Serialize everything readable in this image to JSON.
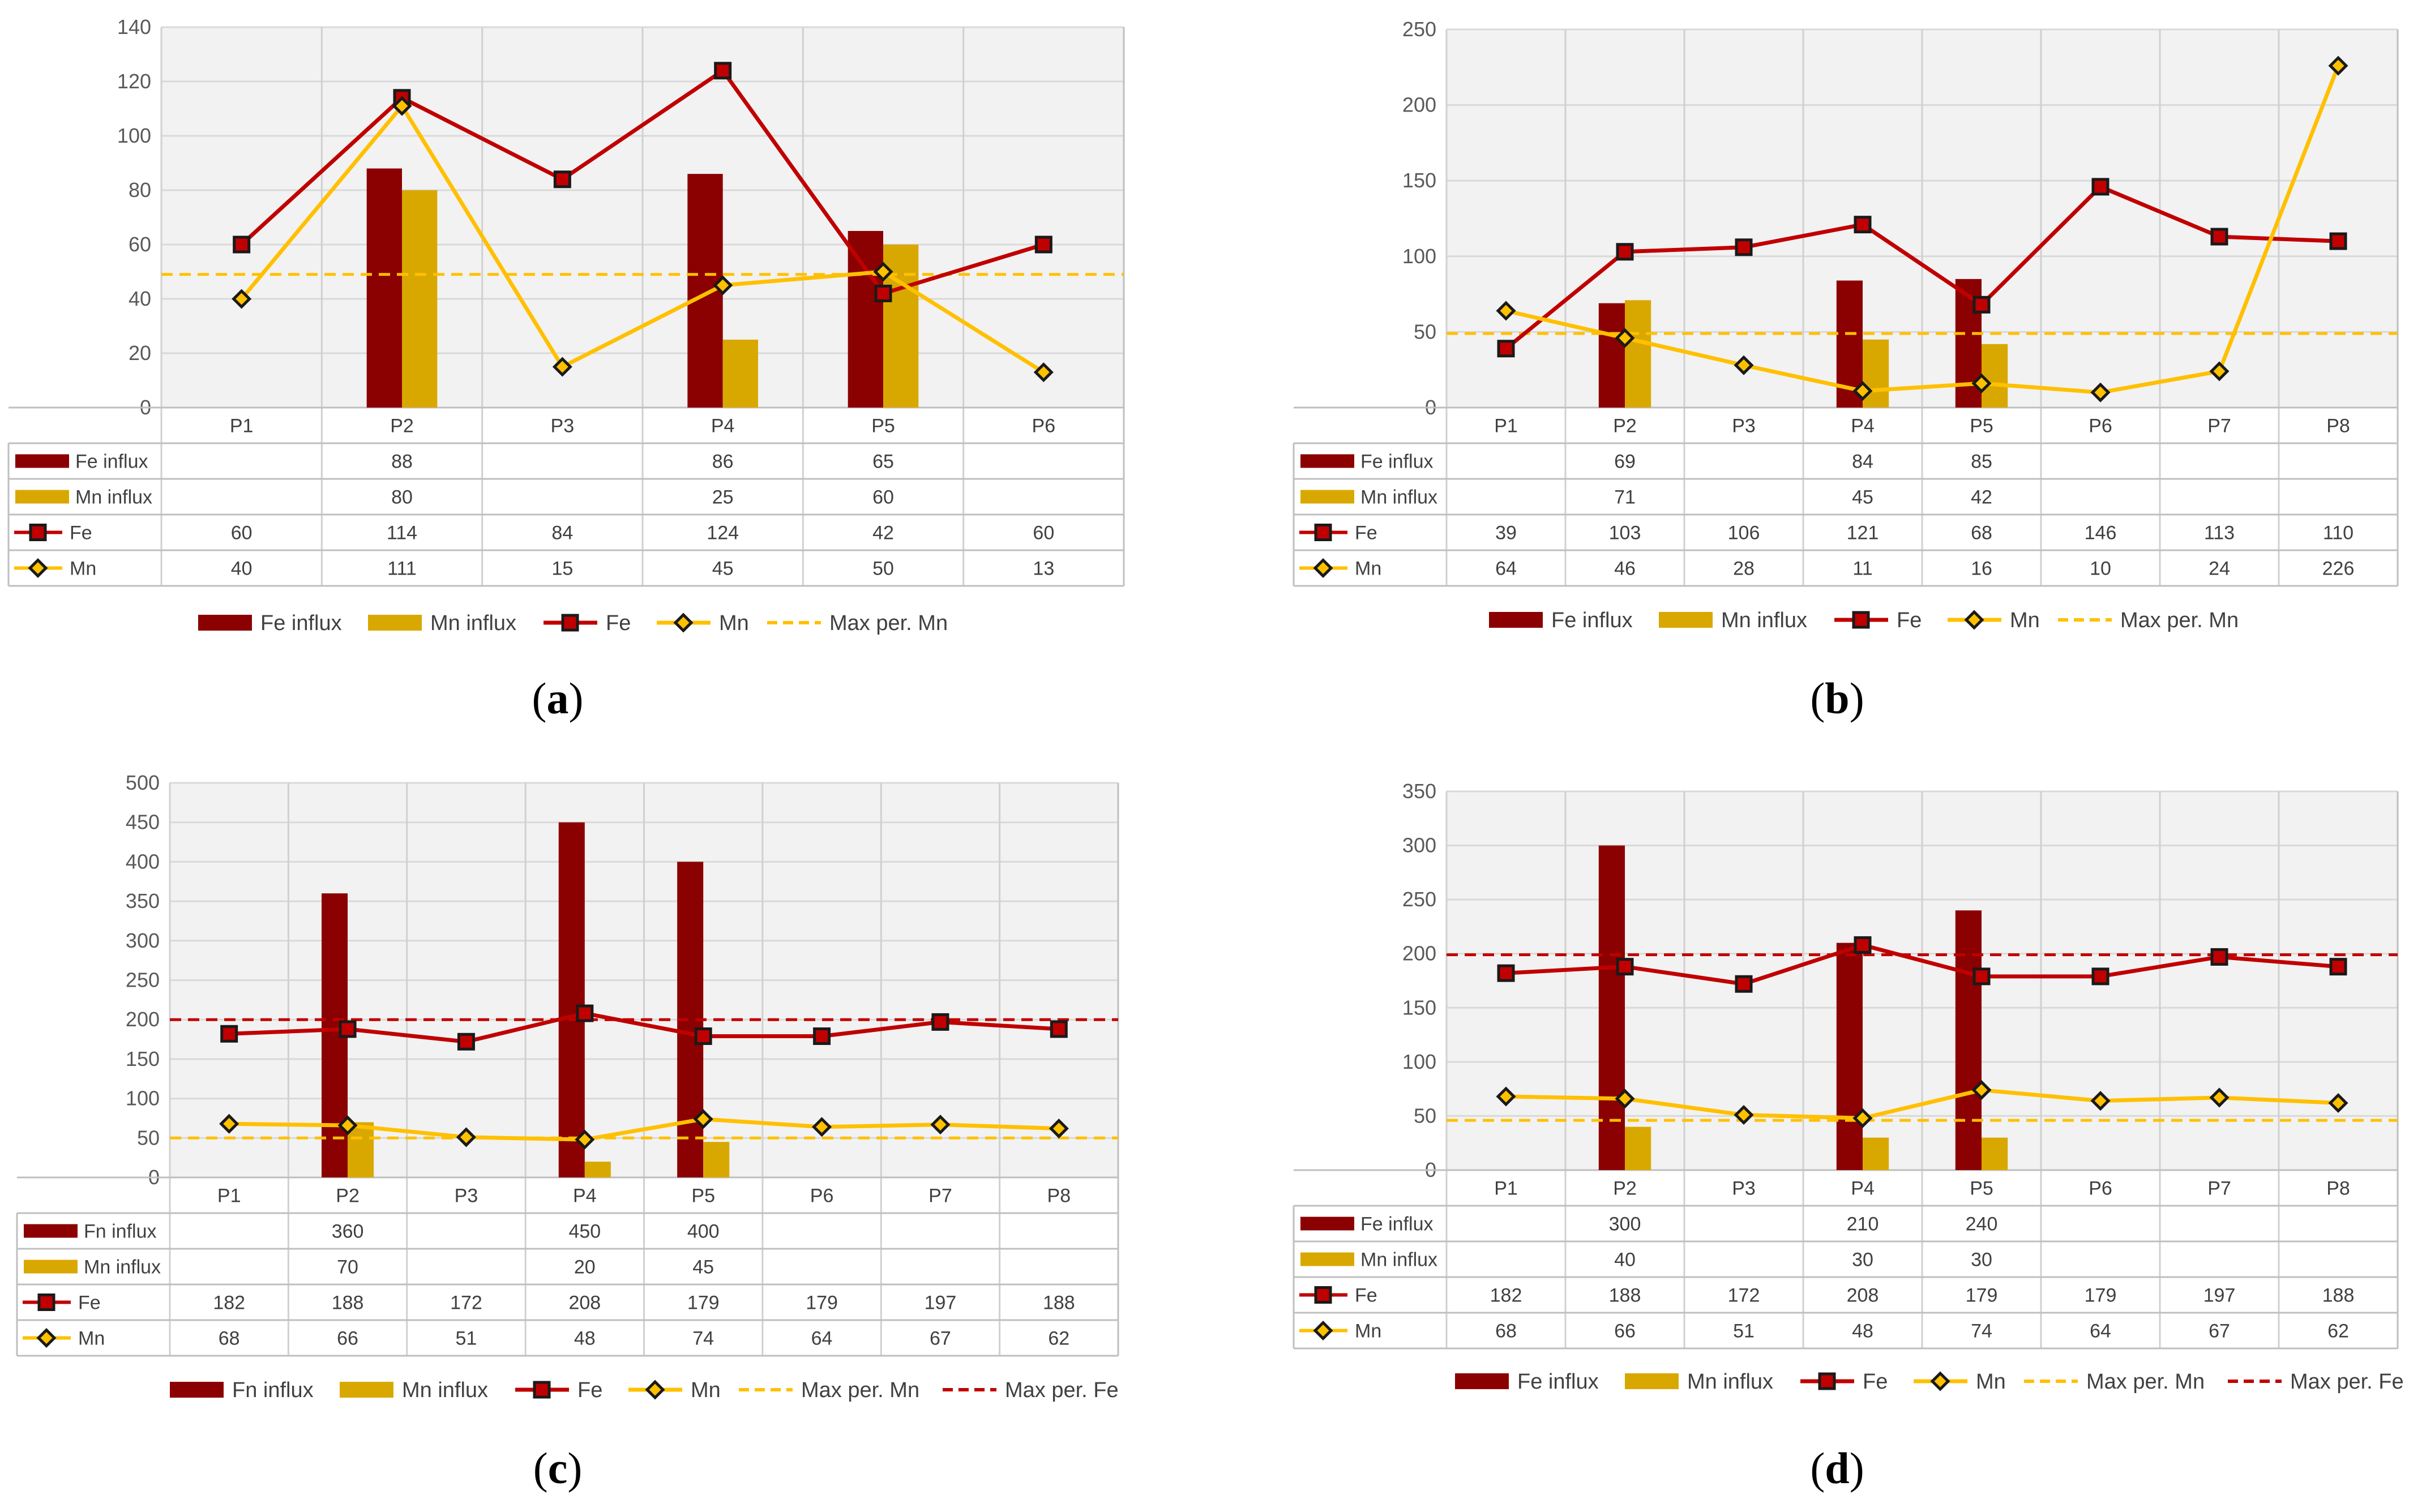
{
  "colors": {
    "fe_bar": "#8B0000",
    "mn_bar": "#D9A800",
    "fe_line": "#C00000",
    "mn_line": "#FFC000",
    "plot_bg": "#F2F2F2",
    "grid": "#D9D9D9"
  },
  "chart_data": [
    {
      "id": "a",
      "type": "bar+line",
      "caption": "a",
      "categories": [
        "P1",
        "P2",
        "P3",
        "P4",
        "P5",
        "P6"
      ],
      "ylim": [
        0,
        140
      ],
      "yticks": [
        0,
        20,
        40,
        60,
        80,
        100,
        120,
        140
      ],
      "series": [
        {
          "name": "Fe influx",
          "kind": "bar",
          "color": "#8B0000",
          "values": [
            null,
            88,
            null,
            86,
            65,
            null
          ]
        },
        {
          "name": "Mn influx",
          "kind": "bar",
          "color": "#D9A800",
          "values": [
            null,
            80,
            null,
            25,
            60,
            null
          ]
        },
        {
          "name": "Fe",
          "kind": "line",
          "marker": "square",
          "color": "#C00000",
          "values": [
            60,
            114,
            84,
            124,
            42,
            60
          ]
        },
        {
          "name": "Mn",
          "kind": "line",
          "marker": "diamond",
          "color": "#FFC000",
          "values": [
            40,
            111,
            15,
            45,
            50,
            13
          ]
        }
      ],
      "refs": [
        {
          "name": "Max per. Mn",
          "value": 49,
          "color": "#FFC000"
        }
      ],
      "legend": [
        "Fe influx",
        "Mn influx",
        "Fe",
        "Mn",
        "Max per. Mn"
      ]
    },
    {
      "id": "b",
      "type": "bar+line",
      "caption": "b",
      "categories": [
        "P1",
        "P2",
        "P3",
        "P4",
        "P5",
        "P6",
        "P7",
        "P8"
      ],
      "ylim": [
        0,
        250
      ],
      "yticks": [
        0,
        50,
        100,
        150,
        200,
        250
      ],
      "series": [
        {
          "name": "Fe influx",
          "kind": "bar",
          "color": "#8B0000",
          "values": [
            null,
            69,
            null,
            84,
            85,
            null,
            null,
            null
          ]
        },
        {
          "name": "Mn influx",
          "kind": "bar",
          "color": "#D9A800",
          "values": [
            null,
            71,
            null,
            45,
            42,
            null,
            null,
            null
          ]
        },
        {
          "name": "Fe",
          "kind": "line",
          "marker": "square",
          "color": "#C00000",
          "values": [
            39,
            103,
            106,
            121,
            68,
            146,
            113,
            110
          ]
        },
        {
          "name": "Mn",
          "kind": "line",
          "marker": "diamond",
          "color": "#FFC000",
          "values": [
            64,
            46,
            28,
            11,
            16,
            10,
            24,
            226
          ]
        }
      ],
      "refs": [
        {
          "name": "Max per. Mn",
          "value": 49,
          "color": "#FFC000"
        }
      ],
      "legend": [
        "Fe influx",
        "Mn influx",
        "Fe",
        "Mn",
        "Max per. Mn"
      ]
    },
    {
      "id": "c",
      "type": "bar+line",
      "caption": "c",
      "categories": [
        "P1",
        "P2",
        "P3",
        "P4",
        "P5",
        "P6",
        "P7",
        "P8"
      ],
      "ylim": [
        0,
        500
      ],
      "yticks": [
        0,
        50,
        100,
        150,
        200,
        250,
        300,
        350,
        400,
        450,
        500
      ],
      "series": [
        {
          "name": "Fn influx",
          "kind": "bar",
          "color": "#8B0000",
          "values": [
            null,
            360,
            null,
            450,
            400,
            null,
            null,
            null
          ]
        },
        {
          "name": "Mn influx",
          "kind": "bar",
          "color": "#D9A800",
          "values": [
            null,
            70,
            null,
            20,
            45,
            null,
            null,
            null
          ]
        },
        {
          "name": "Fe",
          "kind": "line",
          "marker": "square",
          "color": "#C00000",
          "values": [
            182,
            188,
            172,
            208,
            179,
            179,
            197,
            188
          ]
        },
        {
          "name": "Mn",
          "kind": "line",
          "marker": "diamond",
          "color": "#FFC000",
          "values": [
            68,
            66,
            51,
            48,
            74,
            64,
            67,
            62
          ]
        }
      ],
      "refs": [
        {
          "name": "Max per. Mn",
          "value": 50,
          "color": "#FFC000"
        },
        {
          "name": "Max per. Fe",
          "value": 200,
          "color": "#C00000"
        }
      ],
      "legend": [
        "Fn influx",
        "Mn influx",
        "Fe",
        "Mn",
        "Max per. Mn",
        "Max per. Fe"
      ]
    },
    {
      "id": "d",
      "type": "bar+line",
      "caption": "d",
      "categories": [
        "P1",
        "P2",
        "P3",
        "P4",
        "P5",
        "P6",
        "P7",
        "P8"
      ],
      "ylim": [
        0,
        350
      ],
      "yticks": [
        0,
        50,
        100,
        150,
        200,
        250,
        300,
        350
      ],
      "series": [
        {
          "name": "Fe influx",
          "kind": "bar",
          "color": "#8B0000",
          "values": [
            null,
            300,
            null,
            210,
            240,
            null,
            null,
            null
          ]
        },
        {
          "name": "Mn influx",
          "kind": "bar",
          "color": "#D9A800",
          "values": [
            null,
            40,
            null,
            30,
            30,
            null,
            null,
            null
          ]
        },
        {
          "name": "Fe",
          "kind": "line",
          "marker": "square",
          "color": "#C00000",
          "values": [
            182,
            188,
            172,
            208,
            179,
            179,
            197,
            188
          ]
        },
        {
          "name": "Mn",
          "kind": "line",
          "marker": "diamond",
          "color": "#FFC000",
          "values": [
            68,
            66,
            51,
            48,
            74,
            64,
            67,
            62
          ]
        }
      ],
      "refs": [
        {
          "name": "Max per. Mn",
          "value": 46,
          "color": "#FFC000"
        },
        {
          "name": "Max per. Fe",
          "value": 199,
          "color": "#C00000"
        }
      ],
      "legend": [
        "Fe influx",
        "Mn influx",
        "Fe",
        "Mn",
        "Max per. Mn",
        "Max per. Fe"
      ]
    }
  ]
}
